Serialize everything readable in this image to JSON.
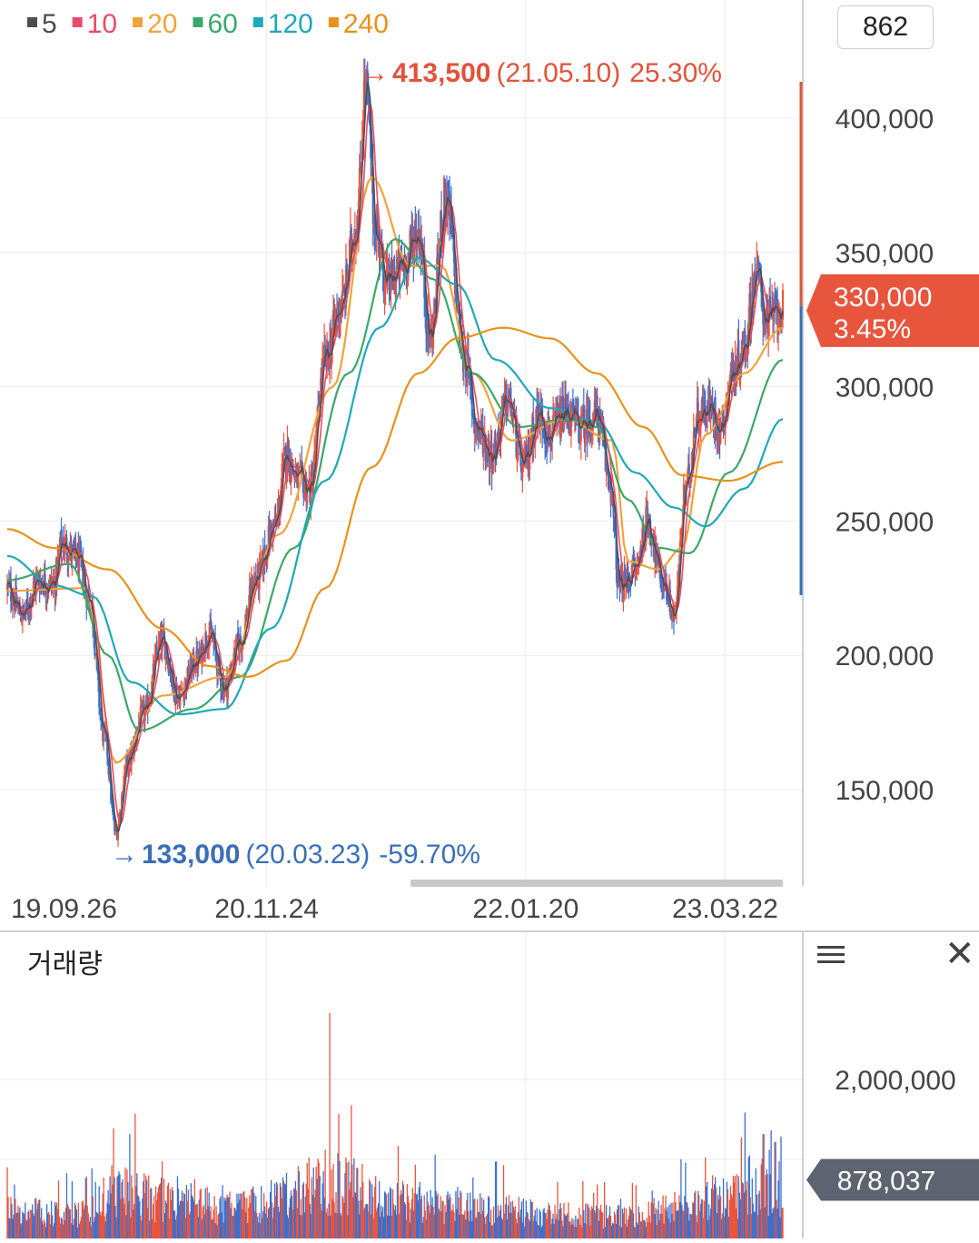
{
  "ma_legend": [
    {
      "label": "5",
      "color": "#4d4d4d"
    },
    {
      "label": "10",
      "color": "#e74c6a"
    },
    {
      "label": "20",
      "color": "#f0a33a"
    },
    {
      "label": "60",
      "color": "#3aa86b"
    },
    {
      "label": "120",
      "color": "#1fa8b8"
    },
    {
      "label": "240",
      "color": "#e8921a"
    }
  ],
  "count_box": "862",
  "high_marker": {
    "value": "413,500",
    "date": "(21.05.10)",
    "pct": "25.30%"
  },
  "low_marker": {
    "value": "133,000",
    "date": "(20.03.23)",
    "pct": "-59.70%"
  },
  "current_price": {
    "price": "330,000",
    "pct": "3.45%",
    "value": 330000
  },
  "volume": {
    "title": "거래량",
    "current": "878,037",
    "current_value": 878037
  },
  "chart_data": [
    {
      "type": "line",
      "title": "",
      "x_ticks": [
        "19.09.26",
        "20.11.24",
        "22.01.20",
        "23.03.22"
      ],
      "x_tick_index": [
        0.0,
        0.331,
        0.665,
        0.922
      ],
      "y_ticks": [
        "150,000",
        "200,000",
        "250,000",
        "300,000",
        "350,000",
        "400,000"
      ],
      "y_tick_values": [
        150000,
        200000,
        250000,
        300000,
        350000,
        400000
      ],
      "ylim": [
        115000,
        428000
      ],
      "price_anchors": [
        [
          0.0,
          225000
        ],
        [
          0.02,
          215000
        ],
        [
          0.04,
          228000
        ],
        [
          0.06,
          226000
        ],
        [
          0.07,
          242000
        ],
        [
          0.09,
          236000
        ],
        [
          0.105,
          222000
        ],
        [
          0.125,
          170000
        ],
        [
          0.14,
          134000
        ],
        [
          0.155,
          160000
        ],
        [
          0.175,
          178000
        ],
        [
          0.2,
          205000
        ],
        [
          0.22,
          185000
        ],
        [
          0.245,
          198000
        ],
        [
          0.26,
          208000
        ],
        [
          0.28,
          188000
        ],
        [
          0.3,
          205000
        ],
        [
          0.32,
          228000
        ],
        [
          0.345,
          248000
        ],
        [
          0.36,
          275000
        ],
        [
          0.375,
          265000
        ],
        [
          0.39,
          262000
        ],
        [
          0.41,
          310000
        ],
        [
          0.43,
          330000
        ],
        [
          0.45,
          360000
        ],
        [
          0.462,
          412000
        ],
        [
          0.475,
          358000
        ],
        [
          0.49,
          338000
        ],
        [
          0.51,
          345000
        ],
        [
          0.53,
          358000
        ],
        [
          0.545,
          318000
        ],
        [
          0.565,
          370000
        ],
        [
          0.59,
          310000
        ],
        [
          0.605,
          285000
        ],
        [
          0.625,
          275000
        ],
        [
          0.645,
          295000
        ],
        [
          0.665,
          270000
        ],
        [
          0.685,
          290000
        ],
        [
          0.7,
          282000
        ],
        [
          0.72,
          290000
        ],
        [
          0.74,
          285000
        ],
        [
          0.76,
          290000
        ],
        [
          0.775,
          268000
        ],
        [
          0.79,
          225000
        ],
        [
          0.81,
          232000
        ],
        [
          0.825,
          250000
        ],
        [
          0.845,
          228000
        ],
        [
          0.86,
          215000
        ],
        [
          0.875,
          262000
        ],
        [
          0.89,
          290000
        ],
        [
          0.905,
          292000
        ],
        [
          0.92,
          285000
        ],
        [
          0.935,
          305000
        ],
        [
          0.95,
          315000
        ],
        [
          0.965,
          342000
        ],
        [
          0.98,
          325000
        ],
        [
          1.0,
          330000
        ]
      ],
      "ma_anchors": {
        "20": [
          [
            0.0,
            224000
          ],
          [
            0.1,
            225000
          ],
          [
            0.14,
            160000
          ],
          [
            0.2,
            185000
          ],
          [
            0.28,
            192000
          ],
          [
            0.35,
            245000
          ],
          [
            0.42,
            300000
          ],
          [
            0.47,
            378000
          ],
          [
            0.52,
            345000
          ],
          [
            0.56,
            345000
          ],
          [
            0.6,
            305000
          ],
          [
            0.65,
            280000
          ],
          [
            0.72,
            288000
          ],
          [
            0.78,
            280000
          ],
          [
            0.8,
            235000
          ],
          [
            0.84,
            232000
          ],
          [
            0.87,
            240000
          ],
          [
            0.9,
            282000
          ],
          [
            0.95,
            305000
          ],
          [
            1.0,
            322000
          ]
        ],
        "60": [
          [
            0.0,
            228000
          ],
          [
            0.08,
            234000
          ],
          [
            0.13,
            200000
          ],
          [
            0.17,
            172000
          ],
          [
            0.24,
            180000
          ],
          [
            0.3,
            192000
          ],
          [
            0.37,
            240000
          ],
          [
            0.44,
            305000
          ],
          [
            0.5,
            355000
          ],
          [
            0.55,
            340000
          ],
          [
            0.6,
            305000
          ],
          [
            0.66,
            285000
          ],
          [
            0.72,
            288000
          ],
          [
            0.76,
            285000
          ],
          [
            0.8,
            258000
          ],
          [
            0.84,
            240000
          ],
          [
            0.88,
            238000
          ],
          [
            0.93,
            268000
          ],
          [
            1.0,
            310000
          ]
        ],
        "120": [
          [
            0.0,
            237000
          ],
          [
            0.06,
            226000
          ],
          [
            0.11,
            222000
          ],
          [
            0.16,
            190000
          ],
          [
            0.22,
            178000
          ],
          [
            0.28,
            180000
          ],
          [
            0.34,
            210000
          ],
          [
            0.41,
            265000
          ],
          [
            0.48,
            322000
          ],
          [
            0.53,
            348000
          ],
          [
            0.58,
            338000
          ],
          [
            0.63,
            310000
          ],
          [
            0.7,
            292000
          ],
          [
            0.76,
            287000
          ],
          [
            0.81,
            268000
          ],
          [
            0.86,
            255000
          ],
          [
            0.9,
            248000
          ],
          [
            0.95,
            262000
          ],
          [
            1.0,
            288000
          ]
        ],
        "240": [
          [
            0.0,
            247000
          ],
          [
            0.06,
            240000
          ],
          [
            0.13,
            232000
          ],
          [
            0.2,
            210000
          ],
          [
            0.26,
            196000
          ],
          [
            0.31,
            192000
          ],
          [
            0.36,
            198000
          ],
          [
            0.41,
            225000
          ],
          [
            0.47,
            270000
          ],
          [
            0.53,
            305000
          ],
          [
            0.58,
            318000
          ],
          [
            0.64,
            322000
          ],
          [
            0.7,
            318000
          ],
          [
            0.76,
            305000
          ],
          [
            0.82,
            285000
          ],
          [
            0.87,
            267000
          ],
          [
            0.93,
            265000
          ],
          [
            1.0,
            272000
          ]
        ]
      }
    },
    {
      "type": "bar",
      "title": "거래량",
      "y_ticks": [
        "2,000,000"
      ],
      "y_tick_values": [
        2000000
      ],
      "ylim": [
        0,
        2900000
      ],
      "volume_anchors": [
        [
          0.0,
          450000
        ],
        [
          0.1,
          380000
        ],
        [
          0.13,
          700000
        ],
        [
          0.16,
          800000
        ],
        [
          0.2,
          650000
        ],
        [
          0.3,
          500000
        ],
        [
          0.35,
          700000
        ],
        [
          0.41,
          950000
        ],
        [
          0.45,
          900000
        ],
        [
          0.5,
          620000
        ],
        [
          0.6,
          550000
        ],
        [
          0.7,
          380000
        ],
        [
          0.8,
          350000
        ],
        [
          0.88,
          550000
        ],
        [
          0.92,
          700000
        ],
        [
          0.96,
          900000
        ],
        [
          1.0,
          878037
        ]
      ],
      "spikes": [
        [
          0.416,
          2850000
        ],
        [
          0.135,
          900000
        ],
        [
          0.2,
          950000
        ],
        [
          0.41,
          1100000
        ],
        [
          0.63,
          950000
        ],
        [
          0.9,
          1000000
        ],
        [
          0.975,
          1300000
        ],
        [
          0.985,
          1350000
        ],
        [
          0.99,
          1200000
        ]
      ]
    }
  ]
}
